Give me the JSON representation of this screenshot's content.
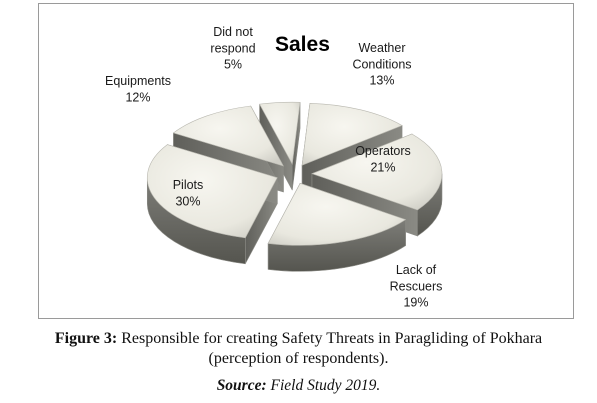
{
  "chart_data": {
    "type": "pie",
    "title": "Sales",
    "slices": [
      {
        "label": [
          "Weather",
          "Conditions",
          "13%"
        ],
        "value": 13
      },
      {
        "label": [
          "Operators",
          "21%"
        ],
        "value": 21
      },
      {
        "label": [
          "Lack of",
          "Rescuers",
          "19%"
        ],
        "value": 19
      },
      {
        "label": [
          "Pilots",
          "30%"
        ],
        "value": 30
      },
      {
        "label": [
          "Equipments",
          "12%"
        ],
        "value": 12
      },
      {
        "label": [
          "Did not",
          "respond",
          "5%"
        ],
        "value": 5
      }
    ],
    "style": "3d-exploded",
    "colors": {
      "top": "#ecebe3",
      "side": "#6f6f6a",
      "edge": "#8b8b85"
    }
  },
  "caption": {
    "figure_label": "Figure 3:",
    "line1": "Responsible for creating Safety Threats in Paragliding of Pokhara",
    "line2": "(perception of respondents).",
    "source_label": "Source:",
    "source_text": "Field Study 2019."
  }
}
